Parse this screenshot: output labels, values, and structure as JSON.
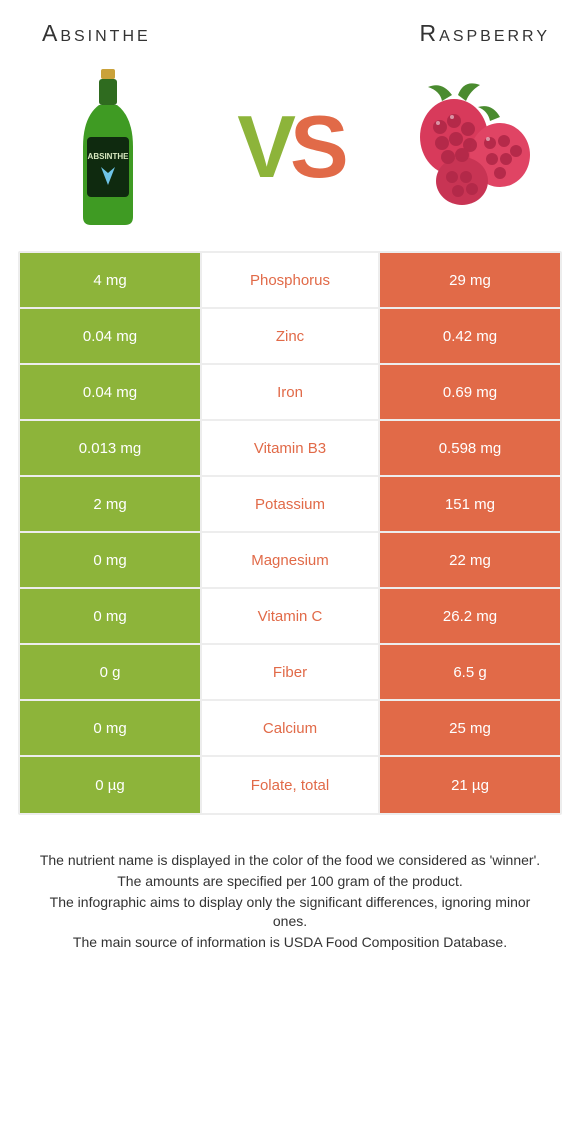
{
  "left": {
    "name": "Absinthe",
    "color": "#8db43a"
  },
  "right": {
    "name": "Raspberry",
    "color": "#e16a48"
  },
  "vs_text": {
    "v": "V",
    "s": "S"
  },
  "nutrients": [
    {
      "label": "Phosphorus",
      "left": "4 mg",
      "right": "29 mg",
      "winner": "right"
    },
    {
      "label": "Zinc",
      "left": "0.04 mg",
      "right": "0.42 mg",
      "winner": "right"
    },
    {
      "label": "Iron",
      "left": "0.04 mg",
      "right": "0.69 mg",
      "winner": "right"
    },
    {
      "label": "Vitamin B3",
      "left": "0.013 mg",
      "right": "0.598 mg",
      "winner": "right"
    },
    {
      "label": "Potassium",
      "left": "2 mg",
      "right": "151 mg",
      "winner": "right"
    },
    {
      "label": "Magnesium",
      "left": "0 mg",
      "right": "22 mg",
      "winner": "right"
    },
    {
      "label": "Vitamin C",
      "left": "0 mg",
      "right": "26.2 mg",
      "winner": "right"
    },
    {
      "label": "Fiber",
      "left": "0 g",
      "right": "6.5 g",
      "winner": "right"
    },
    {
      "label": "Calcium",
      "left": "0 mg",
      "right": "25 mg",
      "winner": "right"
    },
    {
      "label": "Folate, total",
      "left": "0 µg",
      "right": "21 µg",
      "winner": "right"
    }
  ],
  "footnotes": [
    "The nutrient name is displayed in the color of the food we considered as 'winner'.",
    "The amounts are specified per 100 gram of the product.",
    "The infographic aims to display only the significant differences, ignoring minor ones.",
    "The main source of information is USDA Food Composition Database."
  ]
}
